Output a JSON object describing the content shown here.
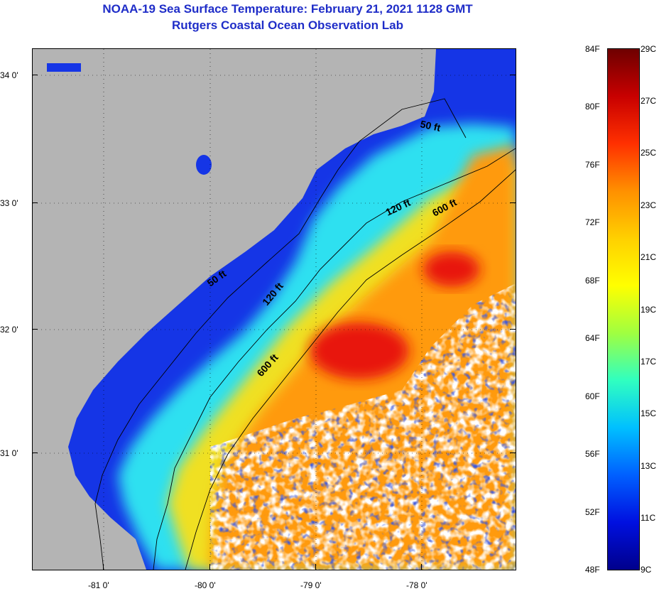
{
  "header": {
    "title_line1": "NOAA-19 Sea Surface Temperature:  February 21, 2021 1128 GMT",
    "title_line2": "Rutgers Coastal Ocean Observation Lab"
  },
  "map": {
    "latitude_labels": [
      "34 0'",
      "33 0'",
      "32 0'",
      "31 0'"
    ],
    "longitude_labels": [
      "-81 0'",
      "-80 0'",
      "-79 0'",
      "-78 0'"
    ],
    "contour_labels": [
      "50 ft",
      "120 ft",
      "600 ft",
      "50 ft",
      "120 ft",
      "600 ft"
    ],
    "colors": {
      "land": "#b4b4b4",
      "cloud": "#ffffff",
      "contour": "#000000",
      "coastal_water": "#1535e6",
      "shelf_water": "#2fe0f0",
      "mid_shelf": "#f0e020",
      "gulf_stream": "#ff9a10",
      "warm_core": "#e8160e"
    }
  },
  "colorbar": {
    "fahrenheit_labels": [
      "84F",
      "80F",
      "76F",
      "72F",
      "68F",
      "64F",
      "60F",
      "56F",
      "52F",
      "48F"
    ],
    "celsius_labels": [
      "29C",
      "27C",
      "25C",
      "23C",
      "21C",
      "19C",
      "17C",
      "15C",
      "13C",
      "11C",
      "9C"
    ],
    "gradient": [
      "#6e0000",
      "#c80000",
      "#ff3000",
      "#ff9000",
      "#ffd000",
      "#ffff00",
      "#a0ff40",
      "#30ffc0",
      "#00c0ff",
      "#0060ff",
      "#0010e0",
      "#00008c"
    ]
  }
}
